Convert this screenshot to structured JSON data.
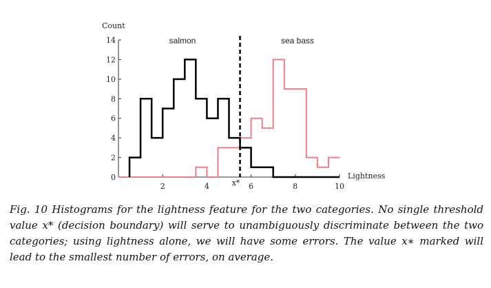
{
  "chart_data": {
    "type": "step-histogram",
    "ylabel": "Count",
    "xlabel": "Lightness",
    "xlim": [
      0,
      10
    ],
    "ylim": [
      0,
      14
    ],
    "xticks": [
      2,
      4,
      6,
      8,
      10
    ],
    "yticks": [
      0,
      2,
      4,
      6,
      8,
      10,
      12,
      14
    ],
    "threshold": {
      "label": "x*",
      "x": 5.5
    },
    "bin_width": 0.5,
    "series": [
      {
        "name": "salmon",
        "color": "#000000",
        "bin_starts": [
          0.5,
          1.0,
          1.5,
          2.0,
          2.5,
          3.0,
          3.5,
          4.0,
          4.5,
          5.0,
          5.5,
          6.0,
          6.5,
          7.0,
          7.5,
          8.0,
          8.5,
          9.0,
          9.5
        ],
        "values": [
          2,
          8,
          4,
          7,
          10,
          12,
          8,
          6,
          8,
          4,
          3,
          1,
          1,
          0,
          0,
          0,
          0,
          0,
          0
        ]
      },
      {
        "name": "sea bass",
        "color": "#f07f86",
        "bin_starts": [
          0.0,
          0.5,
          1.0,
          1.5,
          2.0,
          2.5,
          3.0,
          3.5,
          4.0,
          4.5,
          5.0,
          5.5,
          6.0,
          6.5,
          7.0,
          7.5,
          8.0,
          8.5,
          9.0,
          9.5
        ],
        "values": [
          0,
          0,
          0,
          0,
          0,
          0,
          0,
          1,
          0,
          3,
          3,
          4,
          6,
          5,
          12,
          9,
          9,
          2,
          1,
          2
        ]
      }
    ]
  },
  "caption": "Fig. 10 Histograms for the lightness feature for the two categories. No single threshold value x* (decision boundary) will serve to unambiguously discriminate between the two categories; using lightness alone, we will have some errors. The value x∗ marked will lead to the smallest number of errors, on average."
}
